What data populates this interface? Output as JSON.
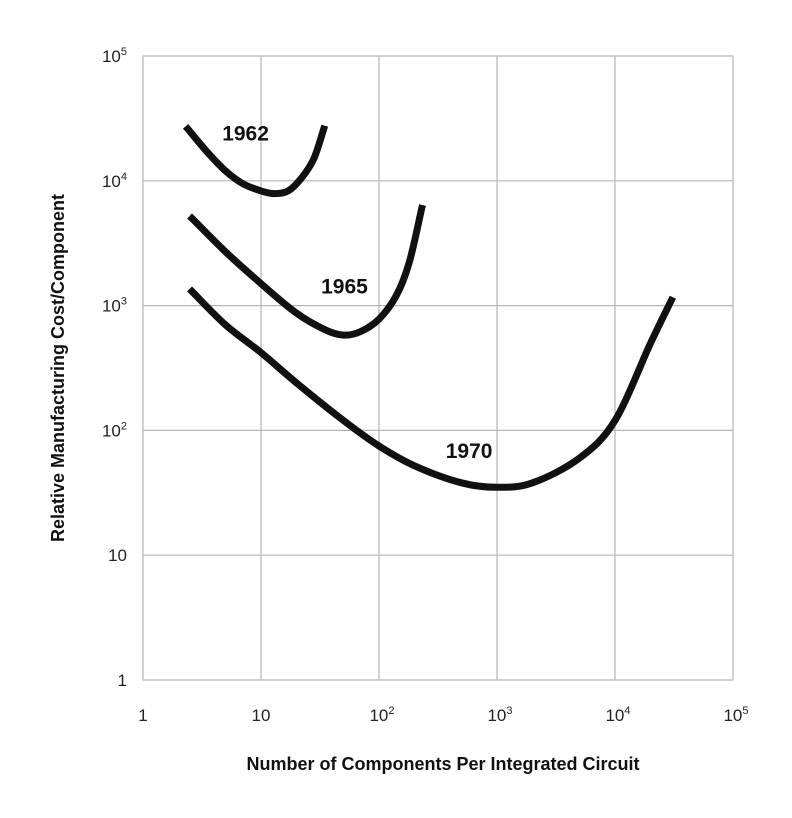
{
  "chart_data": {
    "type": "line",
    "title": "",
    "xlabel": "Number of Components Per Integrated Circuit",
    "ylabel": "Relative Manufacturing Cost/Component",
    "x_scale": "log",
    "y_scale": "log",
    "xlim": [
      1,
      100000
    ],
    "ylim": [
      1,
      100000
    ],
    "grid": true,
    "x_ticks": [
      {
        "value": 1,
        "base": "1",
        "exp": ""
      },
      {
        "value": 10,
        "base": "10",
        "exp": ""
      },
      {
        "value": 100,
        "base": "10",
        "exp": "2"
      },
      {
        "value": 1000,
        "base": "10",
        "exp": "3"
      },
      {
        "value": 10000,
        "base": "10",
        "exp": "4"
      },
      {
        "value": 100000,
        "base": "10",
        "exp": "5"
      }
    ],
    "y_ticks": [
      {
        "value": 1,
        "base": "1",
        "exp": ""
      },
      {
        "value": 10,
        "base": "10",
        "exp": ""
      },
      {
        "value": 100,
        "base": "10",
        "exp": "2"
      },
      {
        "value": 1000,
        "base": "10",
        "exp": "3"
      },
      {
        "value": 10000,
        "base": "10",
        "exp": "4"
      },
      {
        "value": 100000,
        "base": "10",
        "exp": "5"
      }
    ],
    "series": [
      {
        "name": "1962",
        "points": [
          [
            2.4,
            26000
          ],
          [
            3.5,
            17000
          ],
          [
            5,
            12000
          ],
          [
            7,
            9500
          ],
          [
            10,
            8300
          ],
          [
            13,
            7900
          ],
          [
            17,
            8300
          ],
          [
            22,
            10500
          ],
          [
            28,
            15000
          ],
          [
            34,
            26000
          ]
        ]
      },
      {
        "name": "1965",
        "points": [
          [
            2.6,
            5000
          ],
          [
            5,
            2700
          ],
          [
            10,
            1500
          ],
          [
            20,
            870
          ],
          [
            35,
            640
          ],
          [
            50,
            580
          ],
          [
            70,
            620
          ],
          [
            100,
            780
          ],
          [
            140,
            1200
          ],
          [
            180,
            2200
          ],
          [
            230,
            6000
          ]
        ]
      },
      {
        "name": "1970",
        "points": [
          [
            2.6,
            1300
          ],
          [
            5,
            700
          ],
          [
            10,
            420
          ],
          [
            20,
            240
          ],
          [
            50,
            120
          ],
          [
            100,
            75
          ],
          [
            200,
            52
          ],
          [
            500,
            38
          ],
          [
            1000,
            35
          ],
          [
            2000,
            38
          ],
          [
            5000,
            60
          ],
          [
            10000,
            120
          ],
          [
            20000,
            500
          ],
          [
            30000,
            1100
          ]
        ]
      }
    ],
    "series_labels": [
      {
        "name": "1962",
        "x": 7.4,
        "y": 21000
      },
      {
        "name": "1965",
        "x": 51,
        "y": 1250
      },
      {
        "name": "1970",
        "x": 580,
        "y": 60
      }
    ]
  }
}
